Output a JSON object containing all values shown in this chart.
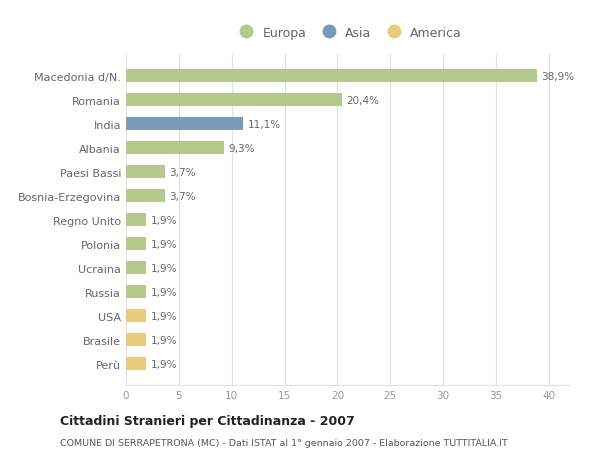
{
  "categories": [
    "Perù",
    "Brasile",
    "USA",
    "Russia",
    "Ucraina",
    "Polonia",
    "Regno Unito",
    "Bosnia-Erzegovina",
    "Paesi Bassi",
    "Albania",
    "India",
    "Romania",
    "Macedonia d/N."
  ],
  "values": [
    1.9,
    1.9,
    1.9,
    1.9,
    1.9,
    1.9,
    1.9,
    3.7,
    3.7,
    9.3,
    11.1,
    20.4,
    38.9
  ],
  "labels": [
    "1,9%",
    "1,9%",
    "1,9%",
    "1,9%",
    "1,9%",
    "1,9%",
    "1,9%",
    "3,7%",
    "3,7%",
    "9,3%",
    "11,1%",
    "20,4%",
    "38,9%"
  ],
  "continents": [
    "America",
    "America",
    "America",
    "Europa",
    "Europa",
    "Europa",
    "Europa",
    "Europa",
    "Europa",
    "Europa",
    "Asia",
    "Europa",
    "Europa"
  ],
  "colors": {
    "Europa": "#b5c98e",
    "Asia": "#7b9bb5",
    "America": "#e8cc7a"
  },
  "legend_items": [
    "Europa",
    "Asia",
    "America"
  ],
  "legend_colors": [
    "#b5c98e",
    "#7b9bb5",
    "#e8cc7a"
  ],
  "xlim": [
    0,
    42
  ],
  "xticks": [
    0,
    5,
    10,
    15,
    20,
    25,
    30,
    35,
    40
  ],
  "title": "Cittadini Stranieri per Cittadinanza - 2007",
  "subtitle": "COMUNE DI SERRAPETRONA (MC) - Dati ISTAT al 1° gennaio 2007 - Elaborazione TUTTITALIA.IT",
  "fig_background": "#ffffff",
  "chart_background": "#ffffff",
  "grid_color": "#e0e0e0",
  "label_color": "#666666",
  "tick_color": "#999999"
}
